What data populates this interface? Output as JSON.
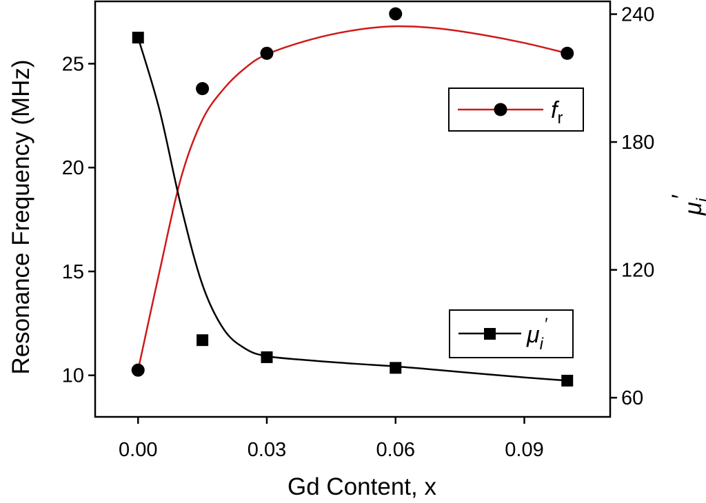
{
  "chart_data": {
    "type": "line",
    "xlabel": "Gd Content, x",
    "ylabel_left": "Resonance Frequency (MHz)",
    "ylabel_right": {
      "base": "μ",
      "prime": "′",
      "sub": "i"
    },
    "x_ticks": [
      "0.00",
      "0.03",
      "0.06",
      "0.09"
    ],
    "x_tick_values": [
      0.0,
      0.03,
      0.06,
      0.09
    ],
    "xlim": [
      -0.01,
      0.11
    ],
    "y_left_ticks": [
      "10",
      "15",
      "20",
      "25"
    ],
    "y_left_tick_values": [
      10,
      15,
      20,
      25
    ],
    "y_left_lim": [
      8,
      28
    ],
    "y_right_ticks": [
      "60",
      "120",
      "180",
      "240"
    ],
    "y_right_tick_values": [
      60,
      120,
      180,
      240
    ],
    "y_right_lim": [
      51,
      246
    ],
    "grid": false,
    "legend_placement": [
      "right-upper-middle",
      "bottom-right"
    ],
    "series": [
      {
        "name": {
          "base": "f",
          "sub": "r"
        },
        "axis": "left",
        "marker": "circle",
        "color": "#d01818",
        "marker_color": "#000000",
        "x": [
          0.0,
          0.015,
          0.03,
          0.06,
          0.1
        ],
        "y": [
          10.25,
          23.8,
          25.5,
          27.4,
          25.5
        ],
        "fit_x": [
          0.0,
          0.005,
          0.01,
          0.015,
          0.02,
          0.025,
          0.03,
          0.04,
          0.05,
          0.06,
          0.07,
          0.08,
          0.09,
          0.1
        ],
        "fit_y": [
          10.25,
          15.0,
          19.5,
          22.3,
          23.8,
          24.8,
          25.45,
          26.15,
          26.6,
          26.8,
          26.7,
          26.4,
          26.0,
          25.5
        ]
      },
      {
        "name": {
          "base": "μ",
          "prime": "′",
          "sub": "i"
        },
        "axis": "right",
        "marker": "square",
        "color": "#000000",
        "marker_color": "#000000",
        "x": [
          0.0,
          0.015,
          0.03,
          0.06,
          0.1
        ],
        "y": [
          229,
          87,
          79,
          74,
          68
        ],
        "fit_x": [
          0.0,
          0.005,
          0.01,
          0.015,
          0.02,
          0.025,
          0.03,
          0.04,
          0.05,
          0.06,
          0.07,
          0.08,
          0.09,
          0.1
        ],
        "fit_y": [
          229,
          195,
          150,
          113,
          92,
          83,
          79.5,
          77.5,
          76,
          74.7,
          73,
          71.2,
          69.5,
          68
        ]
      }
    ]
  }
}
